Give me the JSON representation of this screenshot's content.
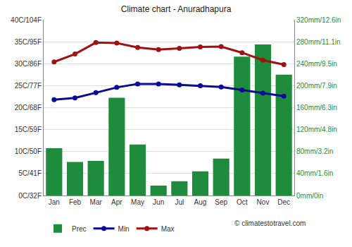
{
  "chart_data": {
    "type": "bar",
    "title": "Climate chart - Anuradhapura",
    "annotations": [
      "© climatestotravel.com"
    ],
    "categories": [
      "Jan",
      "Feb",
      "Mar",
      "Apr",
      "May",
      "Jun",
      "Jul",
      "Aug",
      "Sep",
      "Oct",
      "Nov",
      "Dec"
    ],
    "series": [
      {
        "name": "Prec",
        "type": "bar",
        "axis": "y2",
        "color": "#1e8c3c",
        "values": [
          86,
          61,
          63,
          178,
          93,
          18,
          26,
          44,
          67,
          253,
          275,
          220
        ]
      },
      {
        "name": "Min",
        "type": "line",
        "color": "#0a0a96",
        "marker": "circle",
        "values": [
          21.8,
          22.2,
          23.4,
          24.6,
          25.4,
          25.4,
          25.2,
          25.0,
          24.7,
          24.0,
          23.3,
          22.6
        ]
      },
      {
        "name": "Max",
        "type": "line",
        "color": "#a01212",
        "marker": "circle",
        "values": [
          30.4,
          32.2,
          34.8,
          34.7,
          33.7,
          33.2,
          33.5,
          33.8,
          33.9,
          32.5,
          30.8,
          29.8
        ]
      }
    ],
    "ylim": [
      0,
      40
    ],
    "yticks": [
      {
        "value": 0,
        "label": "0C/32F"
      },
      {
        "value": 5,
        "label": "5C/41F"
      },
      {
        "value": 10,
        "label": "10C/50F"
      },
      {
        "value": 15,
        "label": "15C/59F"
      },
      {
        "value": 20,
        "label": "20C/68F"
      },
      {
        "value": 25,
        "label": "25C/77F"
      },
      {
        "value": 30,
        "label": "30C/86F"
      },
      {
        "value": 35,
        "label": "35C/95F"
      },
      {
        "value": 40,
        "label": "40C/104F"
      }
    ],
    "y2lim": [
      0,
      320
    ],
    "y2ticks": [
      {
        "value": 0,
        "label": "0mm/0in"
      },
      {
        "value": 40,
        "label": "40mm/1.6in"
      },
      {
        "value": 80,
        "label": "80mm/3.2in"
      },
      {
        "value": 120,
        "label": "120mm/4.8in"
      },
      {
        "value": 160,
        "label": "160mm/6.3in"
      },
      {
        "value": 200,
        "label": "200mm/7.9in"
      },
      {
        "value": 240,
        "label": "240mm/9.5in"
      },
      {
        "value": 280,
        "label": "280mm/11.1in"
      },
      {
        "value": 320,
        "label": "320mm/12.6in"
      }
    ],
    "grid": true,
    "legend": "bottom-left"
  }
}
